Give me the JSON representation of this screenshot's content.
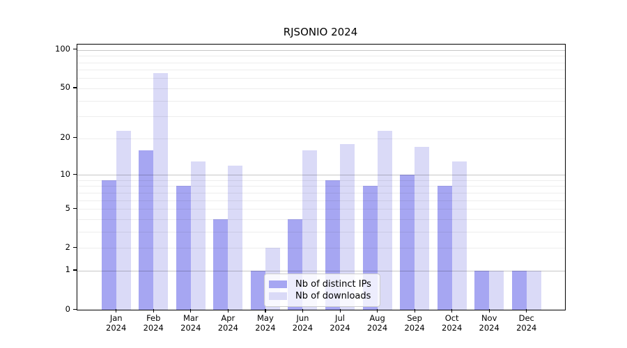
{
  "chart_data": {
    "type": "bar",
    "title": "RJSONIO 2024",
    "categories": [
      "Jan 2024",
      "Feb 2024",
      "Mar 2024",
      "Apr 2024",
      "May 2024",
      "Jun 2024",
      "Jul 2024",
      "Aug 2024",
      "Sep 2024",
      "Oct 2024",
      "Nov 2024",
      "Dec 2024"
    ],
    "series": [
      {
        "name": "Nb of distinct IPs",
        "color": "#a6a6f2",
        "values": [
          9,
          16,
          8,
          4,
          1,
          4,
          9,
          8,
          10,
          8,
          1,
          1
        ]
      },
      {
        "name": "Nb of downloads",
        "color": "#dadaf7",
        "values": [
          23,
          66,
          13,
          12,
          2,
          16,
          18,
          23,
          17,
          13,
          1,
          1
        ]
      }
    ],
    "yscale": "log1p",
    "yticks": [
      0,
      1,
      2,
      5,
      10,
      20,
      50,
      100
    ],
    "ylim": [
      0,
      110
    ],
    "grid": {
      "major_lines": [
        1,
        10,
        100
      ],
      "minor_lines": [
        2,
        3,
        4,
        5,
        6,
        7,
        8,
        9,
        20,
        30,
        40,
        50,
        60,
        70,
        80,
        90
      ]
    },
    "legend_position": "lower center",
    "axis_color": "#000000",
    "background_color": "#ffffff",
    "xlabel": "",
    "ylabel": ""
  }
}
